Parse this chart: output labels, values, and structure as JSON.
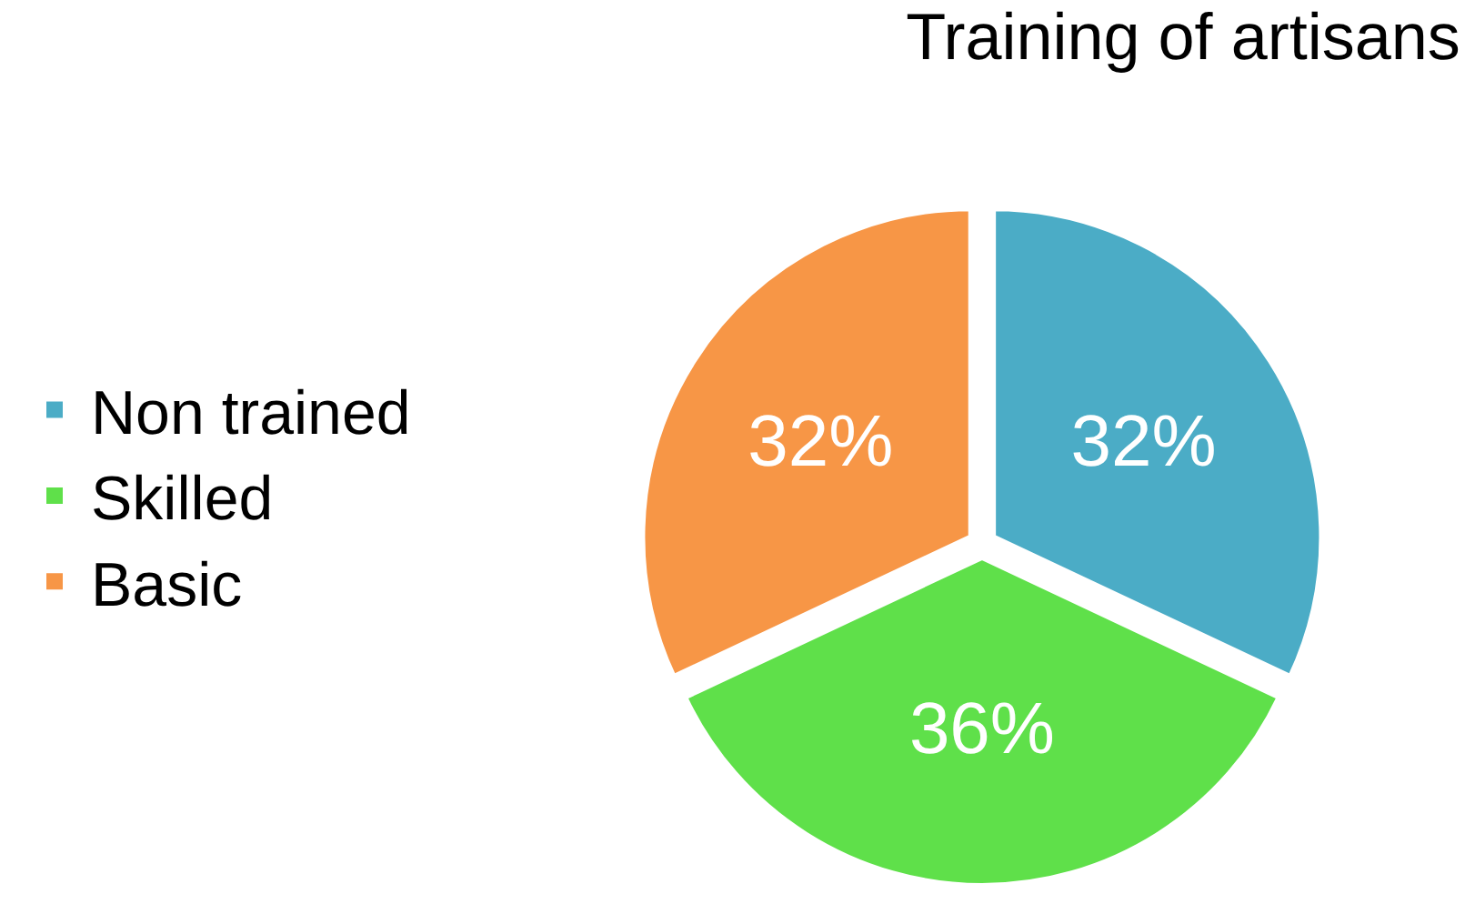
{
  "chart_data": {
    "type": "pie",
    "title": "Training of artisans",
    "categories": [
      "Non trained",
      "Skilled",
      "Basic"
    ],
    "values": [
      32,
      36,
      32
    ],
    "colors": [
      "#4bacc6",
      "#5fe04a",
      "#f79646"
    ],
    "value_labels": [
      "32%",
      "36%",
      "32%"
    ],
    "legend": "left"
  }
}
